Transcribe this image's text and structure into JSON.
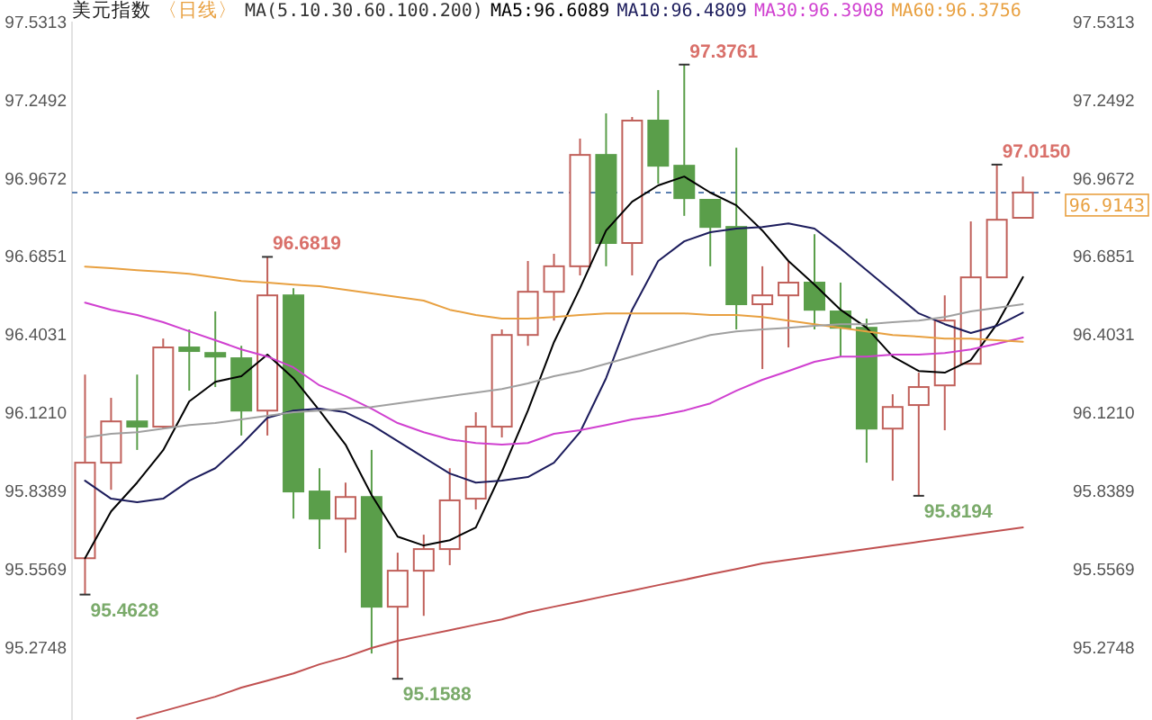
{
  "chart_data": {
    "type": "candlestick",
    "title": "美元指数",
    "subtitle": "〈日线〉",
    "annotations": [
      "MA(5.10.30.60.100.200)",
      "95.4628",
      "96.6819",
      "95.1588",
      "97.3761",
      "95.8194",
      "97.0150"
    ],
    "categories": [
      null,
      null,
      null,
      null,
      null,
      null,
      null,
      null,
      null,
      null,
      null,
      null,
      null,
      null,
      null,
      null,
      null,
      null,
      null,
      null,
      null,
      null,
      null,
      null,
      null,
      null,
      null,
      null,
      null,
      null,
      null,
      null,
      null,
      null,
      null,
      null,
      null
    ],
    "ohlc": [
      [
        95.594,
        96.257,
        95.4628,
        95.939
      ],
      [
        95.939,
        96.173,
        95.841,
        96.088
      ],
      [
        96.088,
        96.257,
        95.985,
        96.069
      ],
      [
        96.069,
        96.387,
        96.062,
        96.355
      ],
      [
        96.355,
        96.42,
        96.199,
        96.342
      ],
      [
        96.335,
        96.485,
        96.212,
        96.322
      ],
      [
        96.316,
        96.361,
        96.037,
        96.127
      ],
      [
        96.127,
        96.6819,
        96.037,
        96.543
      ],
      [
        96.543,
        96.569,
        95.737,
        95.835
      ],
      [
        95.835,
        95.919,
        95.627,
        95.737
      ],
      [
        95.737,
        95.867,
        95.614,
        95.815
      ],
      [
        95.815,
        95.985,
        95.25,
        95.419
      ],
      [
        95.419,
        95.614,
        95.1588,
        95.549
      ],
      [
        95.549,
        95.679,
        95.386,
        95.627
      ],
      [
        95.627,
        95.919,
        95.569,
        95.803
      ],
      [
        95.809,
        96.121,
        95.77,
        96.069
      ],
      [
        96.069,
        96.42,
        96.03,
        96.4
      ],
      [
        96.4,
        96.667,
        96.361,
        96.556
      ],
      [
        96.556,
        96.693,
        96.452,
        96.648
      ],
      [
        96.648,
        97.109,
        96.615,
        97.05
      ],
      [
        97.05,
        97.2,
        96.648,
        96.732
      ],
      [
        96.732,
        97.187,
        96.615,
        97.174
      ],
      [
        97.174,
        97.284,
        96.946,
        97.011
      ],
      [
        97.011,
        97.3761,
        96.83,
        96.894
      ],
      [
        96.888,
        96.888,
        96.648,
        96.79
      ],
      [
        96.79,
        97.076,
        96.42,
        96.511
      ],
      [
        96.511,
        96.648,
        96.277,
        96.543
      ],
      [
        96.543,
        96.667,
        96.355,
        96.589
      ],
      [
        96.589,
        96.764,
        96.42,
        96.491
      ],
      [
        96.485,
        96.589,
        96.322,
        96.426
      ],
      [
        96.426,
        96.459,
        95.939,
        96.062
      ],
      [
        96.062,
        96.186,
        95.874,
        96.14
      ],
      [
        96.147,
        96.264,
        95.8194,
        96.212
      ],
      [
        96.218,
        96.543,
        96.056,
        96.452
      ],
      [
        96.296,
        96.81,
        96.296,
        96.608
      ],
      [
        96.608,
        97.015,
        96.608,
        96.816
      ],
      [
        96.823,
        96.972,
        96.823,
        96.9143
      ]
    ],
    "colors": [
      "#c0605a",
      "#c0605a",
      "#5a9e4a",
      "#c0605a",
      "#5a9e4a",
      "#5a9e4a",
      "#5a9e4a",
      "#c0605a",
      "#5a9e4a",
      "#5a9e4a",
      "#c0605a",
      "#5a9e4a",
      "#c0605a",
      "#c0605a",
      "#c0605a",
      "#c0605a",
      "#c0605a",
      "#c0605a",
      "#c0605a",
      "#c0605a",
      "#5a9e4a",
      "#c0605a",
      "#5a9e4a",
      "#5a9e4a",
      "#5a9e4a",
      "#5a9e4a",
      "#c0605a",
      "#c0605a",
      "#5a9e4a",
      "#5a9e4a",
      "#5a9e4a",
      "#c0605a",
      "#c0605a",
      "#c0605a",
      "#c0605a",
      "#c0605a",
      "#c0605a"
    ],
    "series": [
      {
        "name": "MA5:96.6089",
        "type": "line",
        "color": "#000000",
        "values": [
          95.594,
          95.763,
          95.867,
          95.984,
          96.16,
          96.231,
          96.251,
          96.329,
          96.244,
          96.127,
          96.004,
          95.822,
          95.672,
          95.64,
          95.659,
          95.705,
          95.906,
          96.127,
          96.374,
          96.569,
          96.777,
          96.881,
          96.94,
          96.972,
          96.914,
          96.868,
          96.777,
          96.667,
          96.582,
          96.491,
          96.426,
          96.322,
          96.27,
          96.264,
          96.309,
          96.439,
          96.6089
        ]
      },
      {
        "name": "MA10:96.4809",
        "type": "line",
        "color": "#1c1c5c",
        "values": [
          95.874,
          95.809,
          95.796,
          95.809,
          95.874,
          95.919,
          96.004,
          96.101,
          96.127,
          96.134,
          96.121,
          96.075,
          96.017,
          95.958,
          95.9,
          95.867,
          95.874,
          95.887,
          95.939,
          96.049,
          96.244,
          96.491,
          96.667,
          96.738,
          96.771,
          96.784,
          96.79,
          96.803,
          96.784,
          96.712,
          96.634,
          96.556,
          96.478,
          96.439,
          96.407,
          96.433,
          96.4809
        ]
      },
      {
        "name": "MA30:96.3908",
        "type": "line",
        "color": "#d040d0",
        "values": [
          96.517,
          96.491,
          96.472,
          96.446,
          96.413,
          96.381,
          96.348,
          96.322,
          96.283,
          96.218,
          96.179,
          96.134,
          96.082,
          96.049,
          96.023,
          96.01,
          96.004,
          96.01,
          96.043,
          96.056,
          96.075,
          96.095,
          96.108,
          96.127,
          96.153,
          96.199,
          96.238,
          96.27,
          96.303,
          96.322,
          96.322,
          96.329,
          96.329,
          96.335,
          96.348,
          96.368,
          96.3908
        ]
      },
      {
        "name": "MA60:96.3756",
        "type": "line",
        "color": "#e8a040",
        "values": [
          96.647,
          96.641,
          96.634,
          96.628,
          96.621,
          96.608,
          96.595,
          96.589,
          96.582,
          96.576,
          96.563,
          96.55,
          96.537,
          96.524,
          96.491,
          96.472,
          96.459,
          96.459,
          96.465,
          96.472,
          96.478,
          96.478,
          96.478,
          96.478,
          96.472,
          96.472,
          96.465,
          96.452,
          96.439,
          96.426,
          96.413,
          96.4,
          96.394,
          96.387,
          96.387,
          96.381,
          96.3756
        ]
      },
      {
        "type": "line",
        "color": "#a0a0a0",
        "values": [
          96.03,
          96.043,
          96.049,
          96.062,
          96.075,
          96.082,
          96.095,
          96.108,
          96.121,
          96.127,
          96.134,
          96.14,
          96.153,
          96.166,
          96.179,
          96.192,
          96.205,
          96.225,
          96.251,
          96.27,
          96.296,
          96.322,
          96.348,
          96.374,
          96.4,
          96.413,
          96.42,
          96.426,
          96.433,
          96.439,
          96.439,
          96.446,
          96.452,
          96.465,
          96.485,
          96.498,
          96.511
        ]
      },
      {
        "type": "line",
        "color": "#c05050",
        "values": [
          null,
          null,
          95.016,
          95.042,
          95.068,
          95.094,
          95.127,
          95.152,
          95.178,
          95.211,
          95.237,
          95.27,
          95.296,
          95.315,
          95.334,
          95.354,
          95.373,
          95.399,
          95.419,
          95.438,
          95.458,
          95.477,
          95.497,
          95.516,
          95.536,
          95.555,
          95.575,
          95.588,
          95.601,
          95.614,
          95.627,
          95.64,
          95.653,
          95.666,
          95.679,
          95.692,
          95.705
        ]
      }
    ],
    "ylim": [
      95.01,
      97.5313
    ],
    "yticks": [
      97.5313,
      97.2492,
      96.9672,
      96.6851,
      96.4031,
      {
        "value": 96.121,
        "label": "96.1210"
      },
      95.8389,
      95.5569,
      95.2748
    ],
    "y2lim": [
      95.01,
      97.5313
    ],
    "y2ticks": [
      97.5313,
      97.2492,
      96.9672,
      96.6851,
      96.4031,
      {
        "value": 96.121,
        "label": "96.1210"
      },
      95.8389,
      95.5569,
      95.2748
    ],
    "ref_lines": [
      {
        "axis": "y2",
        "value": 96.9143,
        "label": "96.9143",
        "color": "#5a7fb0",
        "line_style": "dashed"
      }
    ],
    "legend": "top right",
    "tick_labels": "y"
  }
}
